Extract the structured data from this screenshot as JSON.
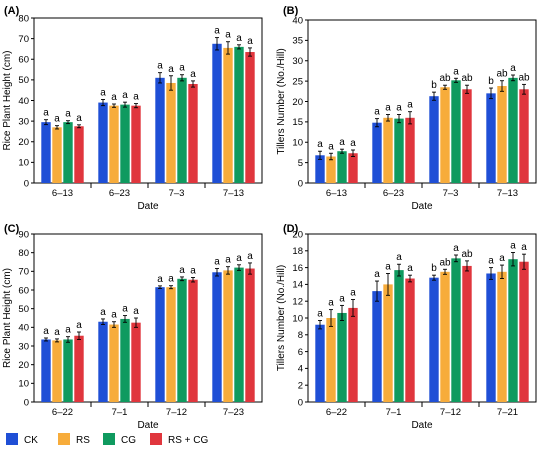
{
  "colors": {
    "CK": "#1f4fd6",
    "RS": "#f7ac3b",
    "CG": "#0f9a5f",
    "RS + CG": "#e0363d"
  },
  "legend": [
    "CK",
    "RS",
    "CG",
    "RS + CG"
  ],
  "chart_data": [
    {
      "type": "bar",
      "panel": "(A)",
      "xlabel": "Date",
      "ylabel": "Rice Plant Height (cm)",
      "ylim": [
        0,
        80
      ],
      "yticks": [
        0,
        10,
        20,
        30,
        40,
        50,
        60,
        70,
        80
      ],
      "categories": [
        "6-13",
        "6-23",
        "7-3",
        "7-13"
      ],
      "series": [
        {
          "name": "CK",
          "values": [
            29.5,
            39,
            51,
            67.5
          ],
          "errors": [
            1.2,
            1.5,
            2.5,
            3.0
          ],
          "labels": [
            "a",
            "a",
            "a",
            "a"
          ]
        },
        {
          "name": "RS",
          "values": [
            27,
            37.5,
            48.5,
            65.5
          ],
          "errors": [
            0.8,
            0.8,
            3.5,
            3.0
          ],
          "labels": [
            "a",
            "a",
            "a",
            "a"
          ]
        },
        {
          "name": "CG",
          "values": [
            29.5,
            38,
            51,
            66
          ],
          "errors": [
            0.7,
            1.2,
            1.5,
            1.0
          ],
          "labels": [
            "a",
            "a",
            "a",
            "a"
          ]
        },
        {
          "name": "RS + CG",
          "values": [
            27.5,
            37.5,
            48,
            63.5
          ],
          "errors": [
            0.7,
            1.0,
            1.5,
            2.0
          ],
          "labels": [
            "a",
            "a",
            "a",
            "a"
          ]
        }
      ]
    },
    {
      "type": "bar",
      "panel": "(B)",
      "xlabel": "Date",
      "ylabel": "Tillers Number (No./Hill)",
      "ylim": [
        0,
        40
      ],
      "yticks": [
        0,
        5,
        10,
        15,
        20,
        25,
        30,
        35,
        40
      ],
      "categories": [
        "6-13",
        "6-23",
        "7-3",
        "7-13"
      ],
      "series": [
        {
          "name": "CK",
          "values": [
            6.8,
            14.8,
            21.3,
            22
          ],
          "errors": [
            1.0,
            1.0,
            1.0,
            1.3
          ],
          "labels": [
            "a",
            "a",
            "b",
            "b"
          ]
        },
        {
          "name": "RS",
          "values": [
            6.5,
            16,
            23.5,
            23.8
          ],
          "errors": [
            0.8,
            0.8,
            0.5,
            1.3
          ],
          "labels": [
            "a",
            "a",
            "ab",
            "ab"
          ]
        },
        {
          "name": "CG",
          "values": [
            7.8,
            15.8,
            25.2,
            25.8
          ],
          "errors": [
            0.5,
            1.0,
            0.5,
            0.7
          ],
          "labels": [
            "a",
            "a",
            "a",
            "a"
          ]
        },
        {
          "name": "RS + CG",
          "values": [
            7.3,
            16,
            23,
            23
          ],
          "errors": [
            0.8,
            1.5,
            1.0,
            1.2
          ],
          "labels": [
            "a",
            "a",
            "ab",
            "ab"
          ]
        }
      ]
    },
    {
      "type": "bar",
      "panel": "(C)",
      "xlabel": "Date",
      "ylabel": "Rice Plant Height (cm)",
      "ylim": [
        0,
        90
      ],
      "yticks": [
        0,
        10,
        20,
        30,
        40,
        50,
        60,
        70,
        80,
        90
      ],
      "categories": [
        "6-22",
        "7-1",
        "7-12",
        "7-23"
      ],
      "series": [
        {
          "name": "CK",
          "values": [
            33.5,
            43,
            61.5,
            69.5
          ],
          "errors": [
            0.8,
            1.5,
            0.7,
            2.0
          ],
          "labels": [
            "a",
            "a",
            "a",
            "a"
          ]
        },
        {
          "name": "RS",
          "values": [
            33,
            41.5,
            61.5,
            70.5
          ],
          "errors": [
            0.8,
            1.5,
            0.8,
            2.0
          ],
          "labels": [
            "a",
            "a",
            "a",
            "a"
          ]
        },
        {
          "name": "CG",
          "values": [
            33.5,
            44.5,
            66,
            72
          ],
          "errors": [
            1.5,
            1.8,
            1.0,
            1.5
          ],
          "labels": [
            "a",
            "a",
            "a",
            "a"
          ]
        },
        {
          "name": "RS + CG",
          "values": [
            35.5,
            42.5,
            65.5,
            71.5
          ],
          "errors": [
            2.0,
            2.5,
            1.2,
            3.0
          ],
          "labels": [
            "a",
            "a",
            "a",
            "a"
          ]
        }
      ]
    },
    {
      "type": "bar",
      "panel": "(D)",
      "xlabel": "Date",
      "ylabel": "Tillers Number (No./Hill)",
      "ylim": [
        0,
        20
      ],
      "yticks": [
        0,
        2,
        4,
        6,
        8,
        10,
        12,
        14,
        16,
        18,
        20
      ],
      "categories": [
        "6-22",
        "7-1",
        "7-12",
        "7-21"
      ],
      "series": [
        {
          "name": "CK",
          "values": [
            9.2,
            13.2,
            14.8,
            15.3
          ],
          "errors": [
            0.5,
            1.2,
            0.3,
            0.7
          ],
          "labels": [
            "a",
            "a",
            "b",
            "a"
          ]
        },
        {
          "name": "RS",
          "values": [
            10,
            14,
            15.5,
            15.5
          ],
          "errors": [
            1.0,
            1.3,
            0.3,
            0.8
          ],
          "labels": [
            "a",
            "a",
            "ab",
            "a"
          ]
        },
        {
          "name": "CG",
          "values": [
            10.6,
            15.7,
            17.1,
            17
          ],
          "errors": [
            0.9,
            0.7,
            0.4,
            0.8
          ],
          "labels": [
            "a",
            "a",
            "a",
            "a"
          ]
        },
        {
          "name": "RS + CG",
          "values": [
            11.2,
            14.7,
            16.2,
            16.7
          ],
          "errors": [
            1.0,
            0.4,
            0.6,
            0.9
          ],
          "labels": [
            "a",
            "a",
            "ab",
            "a"
          ]
        }
      ]
    }
  ]
}
